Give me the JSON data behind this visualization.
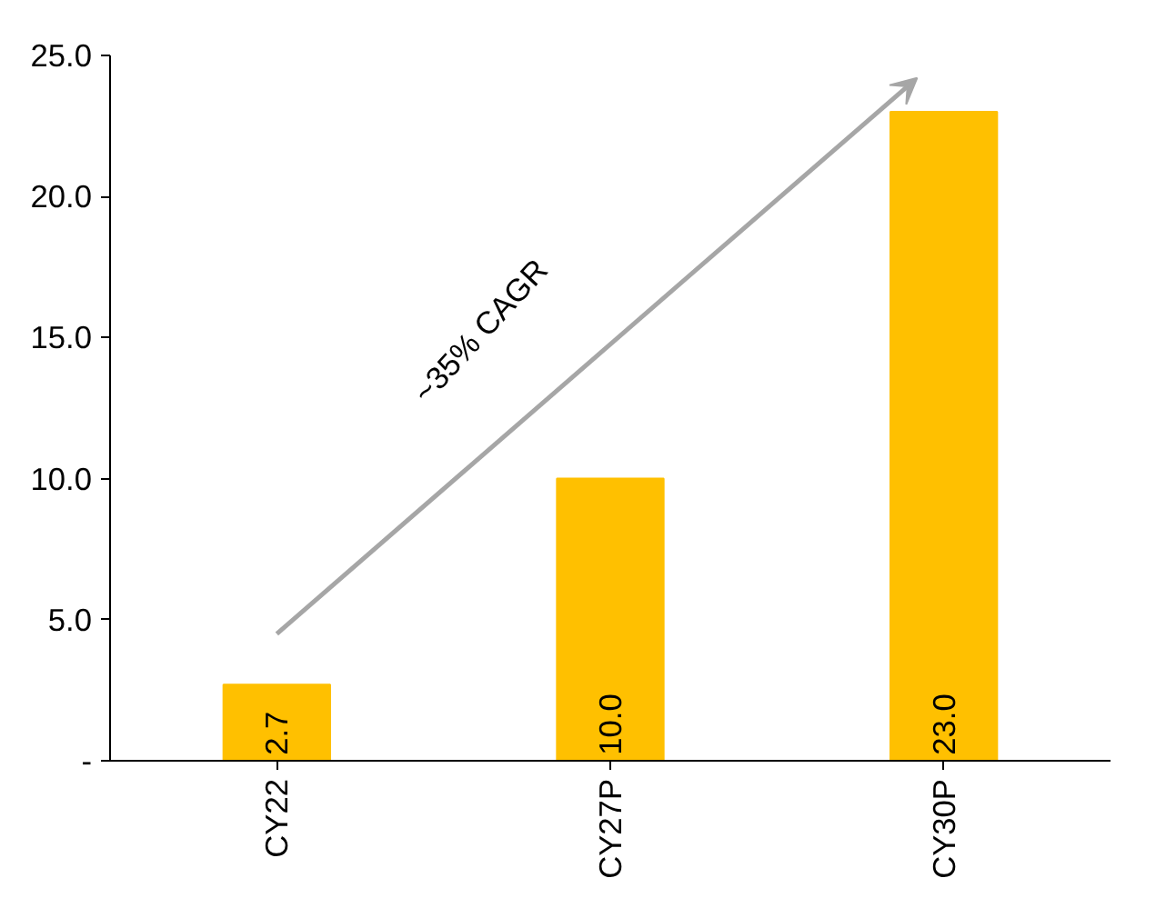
{
  "chart_data": {
    "type": "bar",
    "categories": [
      "CY22",
      "CY27P",
      "CY30P"
    ],
    "values": [
      2.7,
      10.0,
      23.0
    ],
    "color": "#ffc000",
    "value_labels": [
      "2.7",
      "10.0",
      "23.0"
    ],
    "ylim": [
      0,
      25
    ],
    "yticks": [
      {
        "value": 0,
        "label": "-"
      },
      {
        "value": 5,
        "label": "5.0"
      },
      {
        "value": 10,
        "label": "10.0"
      },
      {
        "value": 15,
        "label": "15.0"
      },
      {
        "value": 20,
        "label": "20.0"
      },
      {
        "value": 25,
        "label": "25.0"
      }
    ],
    "annotations": [
      "~35% CAGR"
    ]
  }
}
